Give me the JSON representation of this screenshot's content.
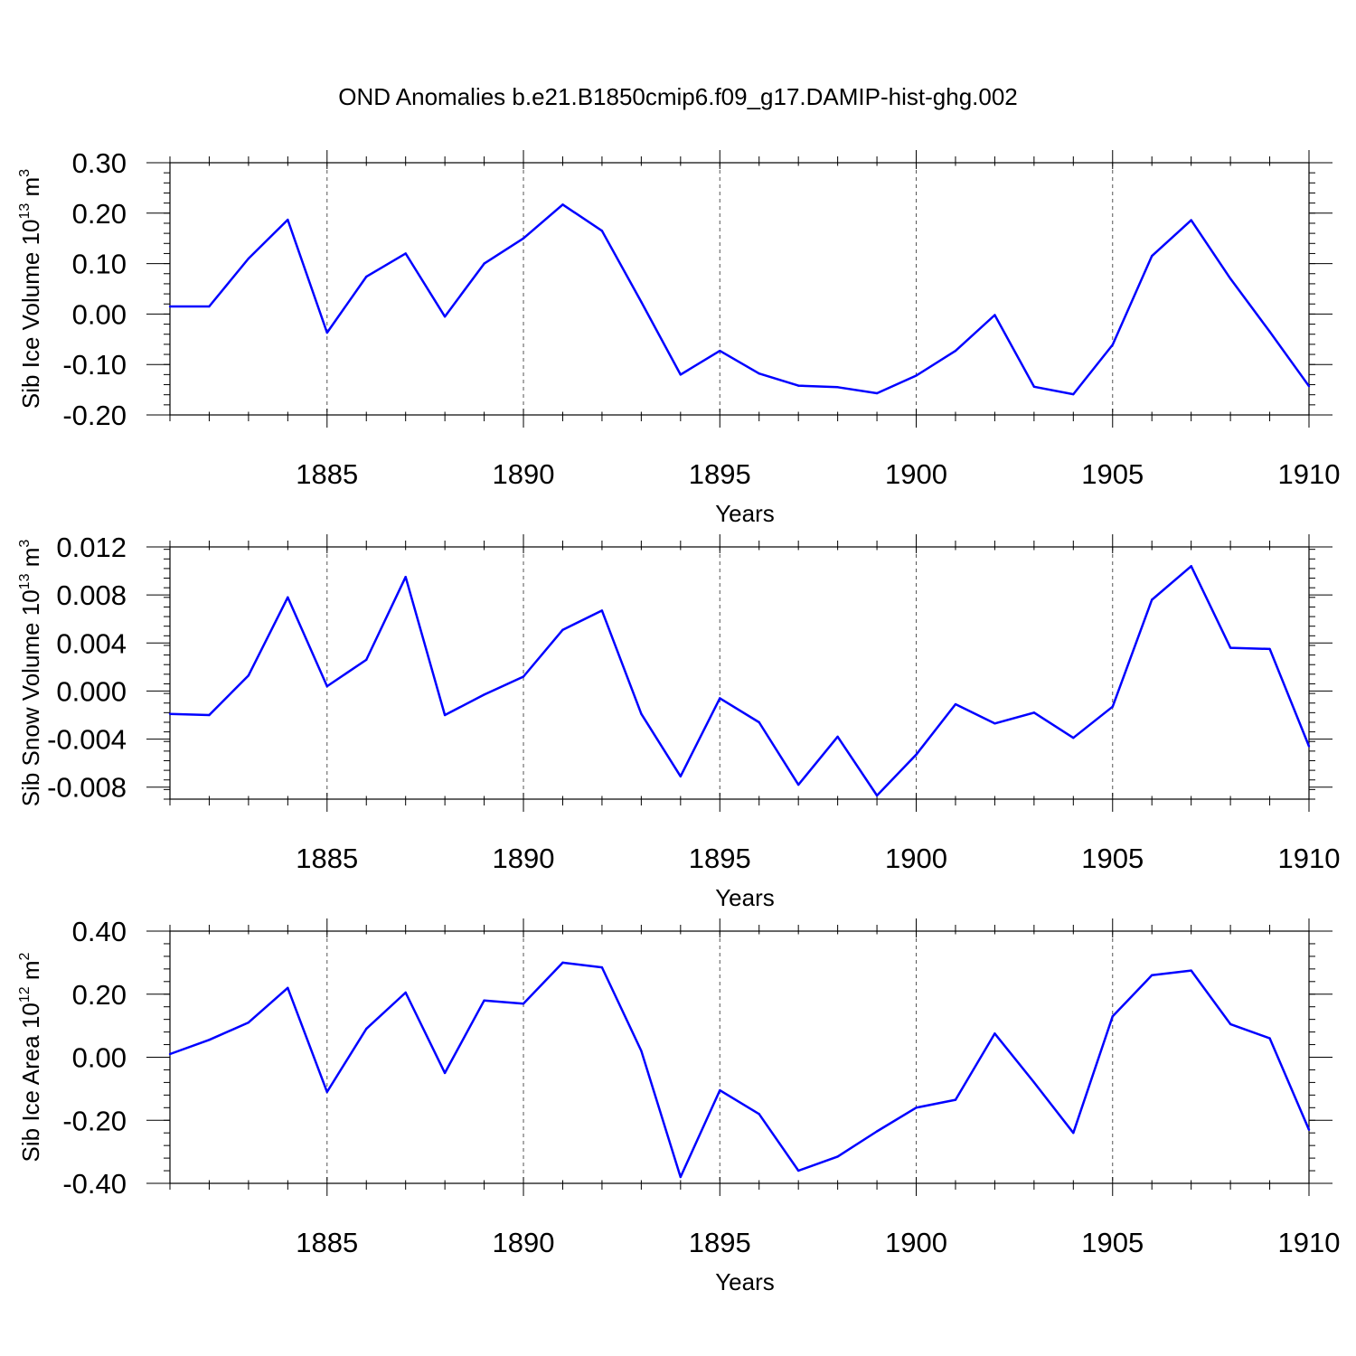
{
  "title": "OND Anomalies b.e21.B1850cmip6.f09_g17.DAMIP-hist-ghg.002",
  "chart_data": [
    {
      "type": "line",
      "id": "ice-volume",
      "xlabel": "Years",
      "ylabel": {
        "prefix": "Sib Ice Volume 10",
        "exponent": "13",
        "middle": " m",
        "unit_exponent": "3"
      },
      "xlim": [
        1881,
        1910
      ],
      "ylim": [
        -0.2,
        0.3
      ],
      "x_ticks": [
        "1885",
        "1890",
        "1895",
        "1900",
        "1905",
        "1910"
      ],
      "y_ticks": [
        "0.30",
        "0.20",
        "0.10",
        "0.00",
        "-0.10",
        "-0.20"
      ],
      "series_color": "#0000ff",
      "x": [
        1881,
        1882,
        1883,
        1884,
        1885,
        1886,
        1887,
        1888,
        1889,
        1890,
        1891,
        1892,
        1893,
        1894,
        1895,
        1896,
        1897,
        1898,
        1899,
        1900,
        1901,
        1902,
        1903,
        1904,
        1905,
        1906,
        1907,
        1908,
        1909,
        1910
      ],
      "values": [
        0.015,
        0.015,
        0.11,
        0.187,
        -0.037,
        0.074,
        0.12,
        -0.005,
        0.1,
        0.15,
        0.217,
        0.165,
        0.024,
        -0.12,
        -0.073,
        -0.118,
        -0.142,
        -0.145,
        -0.157,
        -0.122,
        -0.073,
        -0.002,
        -0.144,
        -0.159,
        -0.061,
        0.115,
        0.186,
        0.07,
        -0.035,
        -0.143
      ]
    },
    {
      "type": "line",
      "id": "snow-volume",
      "xlabel": "Years",
      "ylabel": {
        "prefix": "Sib Snow Volume 10",
        "exponent": "13",
        "middle": " m",
        "unit_exponent": "3"
      },
      "xlim": [
        1881,
        1910
      ],
      "ylim": [
        -0.009,
        0.012
      ],
      "x_ticks": [
        "1885",
        "1890",
        "1895",
        "1900",
        "1905",
        "1910"
      ],
      "y_ticks": [
        "0.012",
        "0.008",
        "0.004",
        "0.000",
        "-0.004",
        "-0.008"
      ],
      "series_color": "#0000ff",
      "x": [
        1881,
        1882,
        1883,
        1884,
        1885,
        1886,
        1887,
        1888,
        1889,
        1890,
        1891,
        1892,
        1893,
        1894,
        1895,
        1896,
        1897,
        1898,
        1899,
        1900,
        1901,
        1902,
        1903,
        1904,
        1905,
        1906,
        1907,
        1908,
        1909,
        1910
      ],
      "values": [
        -0.0019,
        -0.002,
        0.0013,
        0.0078,
        0.0004,
        0.0026,
        0.0095,
        -0.002,
        -0.0003,
        0.0012,
        0.0051,
        0.0067,
        -0.0019,
        -0.0071,
        -0.0006,
        -0.0026,
        -0.0078,
        -0.0038,
        -0.0087,
        -0.0053,
        -0.0011,
        -0.0027,
        -0.0018,
        -0.0039,
        -0.0013,
        0.0076,
        0.0104,
        0.0036,
        0.0035,
        -0.0046
      ]
    },
    {
      "type": "line",
      "id": "ice-area",
      "xlabel": "Years",
      "ylabel": {
        "prefix": "Sib Ice Area 10",
        "exponent": "12",
        "middle": " m",
        "unit_exponent": "2"
      },
      "xlim": [
        1881,
        1910
      ],
      "ylim": [
        -0.4,
        0.4
      ],
      "x_ticks": [
        "1885",
        "1890",
        "1895",
        "1900",
        "1905",
        "1910"
      ],
      "y_ticks": [
        "0.40",
        "0.20",
        "0.00",
        "-0.20",
        "-0.40"
      ],
      "series_color": "#0000ff",
      "x": [
        1881,
        1882,
        1883,
        1884,
        1885,
        1886,
        1887,
        1888,
        1889,
        1890,
        1891,
        1892,
        1893,
        1894,
        1895,
        1896,
        1897,
        1898,
        1899,
        1900,
        1901,
        1902,
        1903,
        1904,
        1905,
        1906,
        1907,
        1908,
        1909,
        1910
      ],
      "values": [
        0.01,
        0.055,
        0.11,
        0.22,
        -0.11,
        0.09,
        0.205,
        -0.05,
        0.18,
        0.17,
        0.3,
        0.285,
        0.02,
        -0.38,
        -0.105,
        -0.18,
        -0.36,
        -0.315,
        -0.235,
        -0.16,
        -0.135,
        0.075,
        -0.08,
        -0.24,
        0.13,
        0.26,
        0.275,
        0.105,
        0.06,
        -0.23
      ]
    }
  ]
}
